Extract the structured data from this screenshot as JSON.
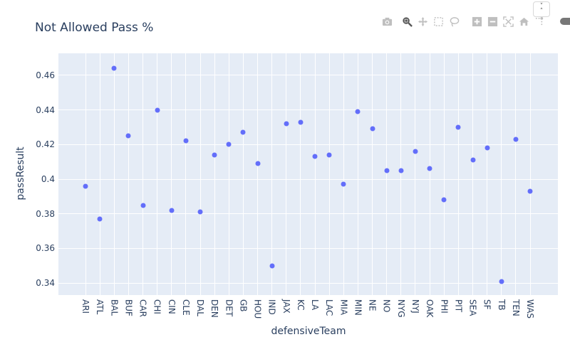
{
  "chart_data": {
    "type": "scatter",
    "title": "Not Allowed Pass %",
    "xlabel": "defensiveTeam",
    "ylabel": "passResult",
    "categories": [
      "ARI",
      "ATL",
      "BAL",
      "BUF",
      "CAR",
      "CHI",
      "CIN",
      "CLE",
      "DAL",
      "DEN",
      "DET",
      "GB",
      "HOU",
      "IND",
      "JAX",
      "KC",
      "LA",
      "LAC",
      "MIA",
      "MIN",
      "NE",
      "NO",
      "NYG",
      "NYJ",
      "OAK",
      "PHI",
      "PIT",
      "SEA",
      "SF",
      "TB",
      "TEN",
      "WAS"
    ],
    "values": [
      0.396,
      0.377,
      0.464,
      0.425,
      0.385,
      0.44,
      0.382,
      0.422,
      0.381,
      0.414,
      0.42,
      0.427,
      0.409,
      0.35,
      0.432,
      0.433,
      0.413,
      0.414,
      0.397,
      0.439,
      0.429,
      0.405,
      0.405,
      0.416,
      0.406,
      0.388,
      0.43,
      0.411,
      0.418,
      0.341,
      0.423,
      0.393
    ],
    "yticks": [
      "0.34",
      "0.36",
      "0.38",
      "0.4",
      "0.42",
      "0.44",
      "0.46"
    ],
    "ytick_values": [
      0.34,
      0.36,
      0.38,
      0.4,
      0.42,
      0.44,
      0.46
    ],
    "ylim": [
      0.3331,
      0.4727
    ],
    "grid": true,
    "legend": "none",
    "marker_color": "#636efa",
    "plot_bg": "#e5ecf6"
  },
  "modebar": {
    "buttons": [
      "camera-icon",
      "zoom-icon",
      "pan-icon",
      "box-select-icon",
      "lasso-select-icon",
      "zoom-in-icon",
      "zoom-out-icon",
      "autoscale-icon",
      "reset-axes-icon",
      "spike-lines-icon"
    ]
  }
}
